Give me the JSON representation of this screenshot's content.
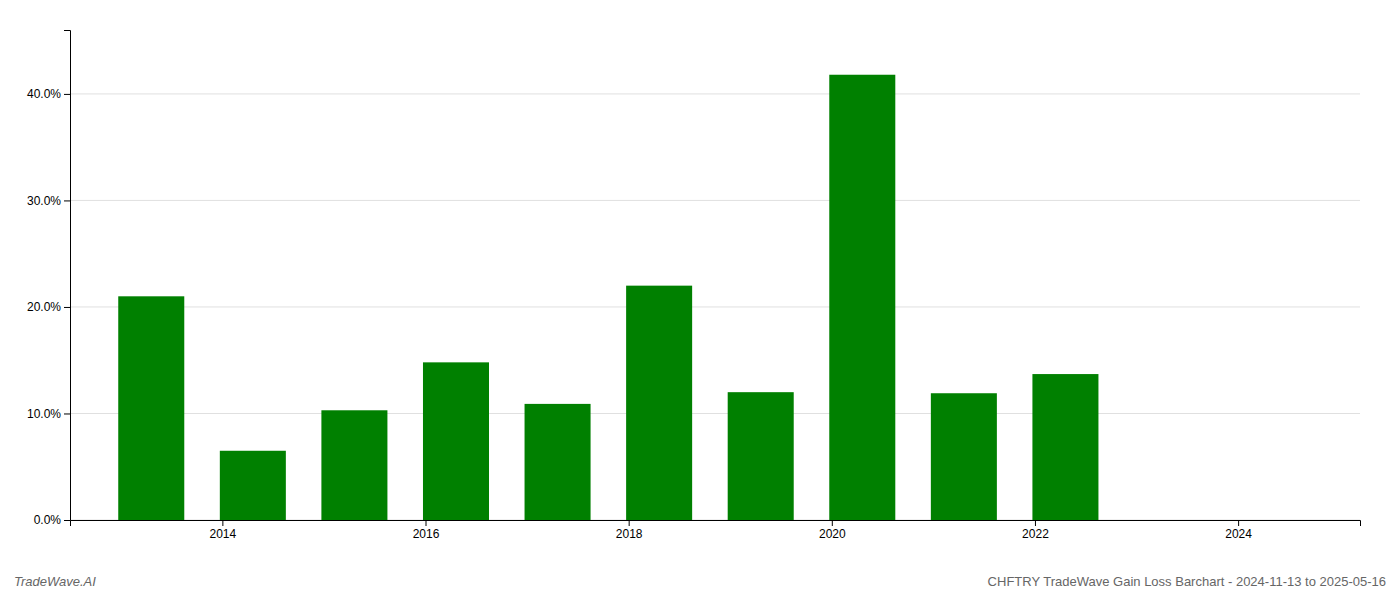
{
  "chart_data": {
    "type": "bar",
    "title": "CHFTRY TradeWave Gain Loss Barchart - 2024-11-13 to 2025-05-16",
    "annotations": [
      "TradeWave.AI"
    ],
    "x": [
      2013.3,
      2014.3,
      2015.3,
      2016.3,
      2017.3,
      2018.3,
      2019.3,
      2020.3,
      2021.3,
      2022.3,
      2023.3
    ],
    "values": [
      0.21,
      0.065,
      0.103,
      0.148,
      0.109,
      0.22,
      0.12,
      0.418,
      0.119,
      0.137,
      0.0
    ],
    "color": "#008000",
    "ylim": [
      0,
      0.46
    ],
    "yticks": [
      {
        "value": 0.0,
        "label": "0.0%"
      },
      {
        "value": 0.1,
        "label": "10.0%"
      },
      {
        "value": 0.2,
        "label": "20.0%"
      },
      {
        "value": 0.3,
        "label": "30.0%"
      },
      {
        "value": 0.4,
        "label": "40.0%"
      }
    ],
    "xlim": [
      2012.5,
      2025.2
    ],
    "xticks": [
      2014,
      2016,
      2018,
      2020,
      2022,
      2024
    ],
    "grid": true
  }
}
